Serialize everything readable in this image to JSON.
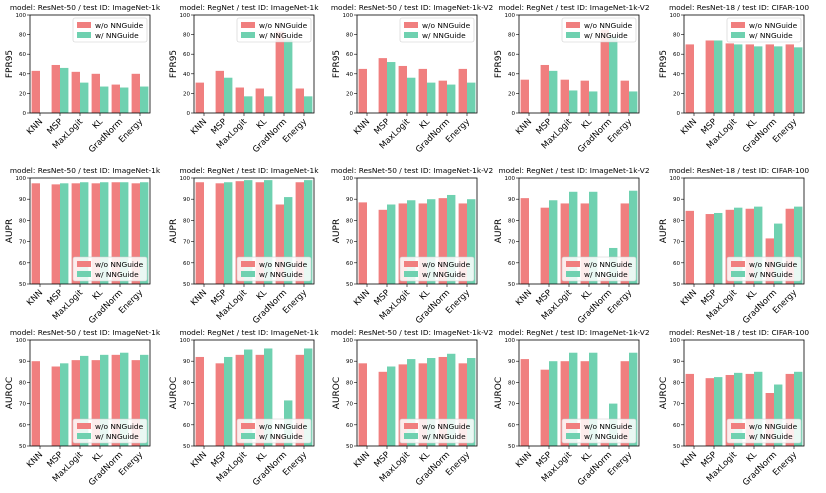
{
  "colors": {
    "without": "#f07f7f",
    "with": "#6fd1b0"
  },
  "chart_data": [
    {
      "type": "bar",
      "title": "model: ResNet-50 / test ID: ImageNet-1k",
      "ylabel": "FPR95",
      "ylim": [
        0,
        100
      ],
      "yticks": [
        0,
        20,
        40,
        60,
        80,
        100
      ],
      "legend_position": "upper-right",
      "categories": [
        "KNN",
        "MSP",
        "MaxLogit",
        "KL",
        "GradNorm",
        "Energy"
      ],
      "series": [
        {
          "name": "w/o NNGuide",
          "values": [
            43,
            49,
            42,
            40,
            29,
            40
          ]
        },
        {
          "name": "w/ NNGuide",
          "values": [
            null,
            46,
            31,
            27,
            26,
            27
          ]
        }
      ]
    },
    {
      "type": "bar",
      "title": "model: RegNet / test ID: ImageNet-1k",
      "ylabel": "FPR95",
      "ylim": [
        0,
        100
      ],
      "yticks": [
        0,
        20,
        40,
        60,
        80,
        100
      ],
      "legend_position": "upper-right",
      "categories": [
        "KNN",
        "MSP",
        "MaxLogit",
        "KL",
        "GradNorm",
        "Energy"
      ],
      "series": [
        {
          "name": "w/o NNGuide",
          "values": [
            31,
            43,
            26,
            25,
            83,
            25
          ]
        },
        {
          "name": "w/ NNGuide",
          "values": [
            null,
            36,
            17,
            17,
            75,
            17
          ]
        }
      ]
    },
    {
      "type": "bar",
      "title": "model: ResNet-50 / test ID: ImageNet-1k-V2",
      "ylabel": "FPR95",
      "ylim": [
        0,
        100
      ],
      "yticks": [
        0,
        20,
        40,
        60,
        80,
        100
      ],
      "legend_position": "upper-right",
      "categories": [
        "KNN",
        "MSP",
        "MaxLogit",
        "KL",
        "GradNorm",
        "Energy"
      ],
      "series": [
        {
          "name": "w/o NNGuide",
          "values": [
            45,
            56,
            48,
            45,
            33,
            45
          ]
        },
        {
          "name": "w/ NNGuide",
          "values": [
            null,
            52,
            36,
            31,
            29,
            31
          ]
        }
      ]
    },
    {
      "type": "bar",
      "title": "model: RegNet / test ID: ImageNet-1k-V2",
      "ylabel": "FPR95",
      "ylim": [
        0,
        100
      ],
      "yticks": [
        0,
        20,
        40,
        60,
        80,
        100
      ],
      "legend_position": "upper-right",
      "categories": [
        "KNN",
        "MSP",
        "MaxLogit",
        "KL",
        "GradNorm",
        "Energy"
      ],
      "series": [
        {
          "name": "w/o NNGuide",
          "values": [
            34,
            49,
            34,
            33,
            85,
            33
          ]
        },
        {
          "name": "w/ NNGuide",
          "values": [
            null,
            43,
            23,
            22,
            78,
            22
          ]
        }
      ]
    },
    {
      "type": "bar",
      "title": "model: ResNet-18 / test ID: CIFAR-100",
      "ylabel": "FPR95",
      "ylim": [
        0,
        100
      ],
      "yticks": [
        0,
        20,
        40,
        60,
        80,
        100
      ],
      "legend_position": "upper-right",
      "categories": [
        "KNN",
        "MSP",
        "MaxLogit",
        "KL",
        "GradNorm",
        "Energy"
      ],
      "series": [
        {
          "name": "w/o NNGuide",
          "values": [
            70,
            74,
            71,
            70,
            70,
            70
          ]
        },
        {
          "name": "w/ NNGuide",
          "values": [
            null,
            74,
            70,
            68,
            68,
            67
          ]
        }
      ]
    },
    {
      "type": "bar",
      "title": "model: ResNet-50 / test ID: ImageNet-1k",
      "ylabel": "AUPR",
      "ylim": [
        50,
        100
      ],
      "yticks": [
        50,
        60,
        70,
        80,
        90,
        100
      ],
      "legend_position": "lower-right",
      "categories": [
        "KNN",
        "MSP",
        "MaxLogit",
        "KL",
        "GradNorm",
        "Energy"
      ],
      "series": [
        {
          "name": "w/o NNGuide",
          "values": [
            97.5,
            97,
            97.5,
            97.5,
            98,
            97.5
          ]
        },
        {
          "name": "w/ NNGuide",
          "values": [
            null,
            97.5,
            98,
            98,
            98,
            98
          ]
        }
      ]
    },
    {
      "type": "bar",
      "title": "model: RegNet / test ID: ImageNet-1k",
      "ylabel": "AUPR",
      "ylim": [
        50,
        100
      ],
      "yticks": [
        50,
        60,
        70,
        80,
        90,
        100
      ],
      "legend_position": "lower-right",
      "categories": [
        "KNN",
        "MSP",
        "MaxLogit",
        "KL",
        "GradNorm",
        "Energy"
      ],
      "series": [
        {
          "name": "w/o NNGuide",
          "values": [
            98,
            97.5,
            98.5,
            98,
            87.5,
            98
          ]
        },
        {
          "name": "w/ NNGuide",
          "values": [
            null,
            98,
            99,
            99,
            91,
            99
          ]
        }
      ]
    },
    {
      "type": "bar",
      "title": "model: ResNet-50 / test ID: ImageNet-1k-V2",
      "ylabel": "AUPR",
      "ylim": [
        50,
        100
      ],
      "yticks": [
        50,
        60,
        70,
        80,
        90,
        100
      ],
      "legend_position": "lower-right",
      "categories": [
        "KNN",
        "MSP",
        "MaxLogit",
        "KL",
        "GradNorm",
        "Energy"
      ],
      "series": [
        {
          "name": "w/o NNGuide",
          "values": [
            88.5,
            85,
            88,
            88,
            90.5,
            88
          ]
        },
        {
          "name": "w/ NNGuide",
          "values": [
            null,
            87.5,
            89.5,
            90,
            92,
            90
          ]
        }
      ]
    },
    {
      "type": "bar",
      "title": "model: RegNet / test ID: ImageNet-1k-V2",
      "ylabel": "AUPR",
      "ylim": [
        50,
        100
      ],
      "yticks": [
        50,
        60,
        70,
        80,
        90,
        100
      ],
      "legend_position": "lower-right",
      "categories": [
        "KNN",
        "MSP",
        "MaxLogit",
        "KL",
        "GradNorm",
        "Energy"
      ],
      "series": [
        {
          "name": "w/o NNGuide",
          "values": [
            90.5,
            86,
            88,
            88,
            53,
            88
          ]
        },
        {
          "name": "w/ NNGuide",
          "values": [
            null,
            89.5,
            93.5,
            93.5,
            67,
            94
          ]
        }
      ]
    },
    {
      "type": "bar",
      "title": "model: ResNet-18 / test ID: CIFAR-100",
      "ylabel": "AUPR",
      "ylim": [
        50,
        100
      ],
      "yticks": [
        50,
        60,
        70,
        80,
        90,
        100
      ],
      "legend_position": "lower-right",
      "categories": [
        "KNN",
        "MSP",
        "MaxLogit",
        "KL",
        "GradNorm",
        "Energy"
      ],
      "series": [
        {
          "name": "w/o NNGuide",
          "values": [
            84.5,
            83,
            85,
            85.5,
            71.5,
            85.5
          ]
        },
        {
          "name": "w/ NNGuide",
          "values": [
            null,
            83.5,
            86,
            86.5,
            78.5,
            86.5
          ]
        }
      ]
    },
    {
      "type": "bar",
      "title": "model: ResNet-50 / test ID: ImageNet-1k",
      "ylabel": "AUROC",
      "ylim": [
        50,
        100
      ],
      "yticks": [
        50,
        60,
        70,
        80,
        90,
        100
      ],
      "legend_position": "lower-right",
      "categories": [
        "KNN",
        "MSP",
        "MaxLogit",
        "KL",
        "GradNorm",
        "Energy"
      ],
      "series": [
        {
          "name": "w/o NNGuide",
          "values": [
            90,
            87.5,
            90.5,
            90.5,
            93,
            90.5
          ]
        },
        {
          "name": "w/ NNGuide",
          "values": [
            null,
            89,
            92.5,
            93,
            94,
            93
          ]
        }
      ]
    },
    {
      "type": "bar",
      "title": "model: RegNet / test ID: ImageNet-1k",
      "ylabel": "AUROC",
      "ylim": [
        50,
        100
      ],
      "yticks": [
        50,
        60,
        70,
        80,
        90,
        100
      ],
      "legend_position": "lower-right",
      "categories": [
        "KNN",
        "MSP",
        "MaxLogit",
        "KL",
        "GradNorm",
        "Energy"
      ],
      "series": [
        {
          "name": "w/o NNGuide",
          "values": [
            92,
            89,
            93,
            93,
            55,
            93
          ]
        },
        {
          "name": "w/ NNGuide",
          "values": [
            null,
            92,
            95.5,
            96,
            71.5,
            96
          ]
        }
      ]
    },
    {
      "type": "bar",
      "title": "model: ResNet-50 / test ID: ImageNet-1k-V2",
      "ylabel": "AUROC",
      "ylim": [
        50,
        100
      ],
      "yticks": [
        50,
        60,
        70,
        80,
        90,
        100
      ],
      "legend_position": "lower-right",
      "categories": [
        "KNN",
        "MSP",
        "MaxLogit",
        "KL",
        "GradNorm",
        "Energy"
      ],
      "series": [
        {
          "name": "w/o NNGuide",
          "values": [
            89,
            85,
            88.5,
            89,
            92,
            89
          ]
        },
        {
          "name": "w/ NNGuide",
          "values": [
            null,
            87.5,
            91,
            91.5,
            93.5,
            91.5
          ]
        }
      ]
    },
    {
      "type": "bar",
      "title": "model: RegNet / test ID: ImageNet-1k-V2",
      "ylabel": "AUROC",
      "ylim": [
        50,
        100
      ],
      "yticks": [
        50,
        60,
        70,
        80,
        90,
        100
      ],
      "legend_position": "lower-right",
      "categories": [
        "KNN",
        "MSP",
        "MaxLogit",
        "KL",
        "GradNorm",
        "Energy"
      ],
      "series": [
        {
          "name": "w/o NNGuide",
          "values": [
            91,
            86,
            90,
            90,
            53,
            90
          ]
        },
        {
          "name": "w/ NNGuide",
          "values": [
            null,
            90,
            94,
            94,
            70,
            94
          ]
        }
      ]
    },
    {
      "type": "bar",
      "title": "model: ResNet-18 / test ID: CIFAR-100",
      "ylabel": "AUROC",
      "ylim": [
        50,
        100
      ],
      "yticks": [
        50,
        60,
        70,
        80,
        90,
        100
      ],
      "legend_position": "lower-right",
      "categories": [
        "KNN",
        "MSP",
        "MaxLogit",
        "KL",
        "GradNorm",
        "Energy"
      ],
      "series": [
        {
          "name": "w/o NNGuide",
          "values": [
            84,
            82,
            83.5,
            84,
            75,
            84
          ]
        },
        {
          "name": "w/ NNGuide",
          "values": [
            null,
            82.5,
            84.5,
            85,
            79,
            85
          ]
        }
      ]
    }
  ]
}
